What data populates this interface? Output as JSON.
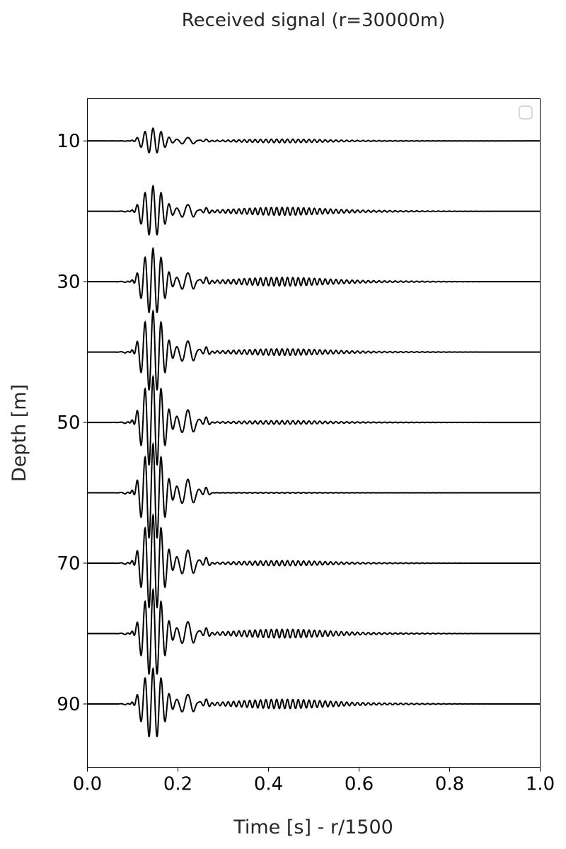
{
  "chart_data": {
    "type": "line",
    "title": "Received signal (r=30000m)",
    "xlabel": "Time [s] - r/1500",
    "ylabel": "Depth [m]",
    "xlim": [
      0.0,
      1.0
    ],
    "ylim": [
      99,
      4
    ],
    "y_inverted": true,
    "grid": false,
    "legend": {
      "placement": "top-right",
      "entries": []
    },
    "xticks": [
      0.0,
      0.2,
      0.4,
      0.6,
      0.8,
      1.0
    ],
    "xtick_labels": [
      "0.0",
      "0.2",
      "0.4",
      "0.6",
      "0.8",
      "1.0"
    ],
    "yticks": [
      10,
      30,
      50,
      70,
      90
    ],
    "ytick_labels": [
      "10",
      "30",
      "50",
      "70",
      "90"
    ],
    "trace_depths": [
      10,
      20,
      30,
      40,
      50,
      60,
      70,
      80,
      90
    ],
    "series": [
      {
        "depth": 10,
        "main_arrival_peak": 1.8,
        "tail_amplitude": 0.25
      },
      {
        "depth": 20,
        "main_arrival_peak": 3.6,
        "tail_amplitude": 0.55
      },
      {
        "depth": 30,
        "main_arrival_peak": 4.7,
        "tail_amplitude": 0.6
      },
      {
        "depth": 40,
        "main_arrival_peak": 5.8,
        "tail_amplitude": 0.45
      },
      {
        "depth": 50,
        "main_arrival_peak": 6.5,
        "tail_amplitude": 0.25
      },
      {
        "depth": 60,
        "main_arrival_peak": 6.9,
        "tail_amplitude": 0.05
      },
      {
        "depth": 70,
        "main_arrival_peak": 6.8,
        "tail_amplitude": 0.35
      },
      {
        "depth": 80,
        "main_arrival_peak": 6.2,
        "tail_amplitude": 0.6
      },
      {
        "depth": 90,
        "main_arrival_peak": 5.0,
        "tail_amplitude": 0.65
      }
    ]
  }
}
